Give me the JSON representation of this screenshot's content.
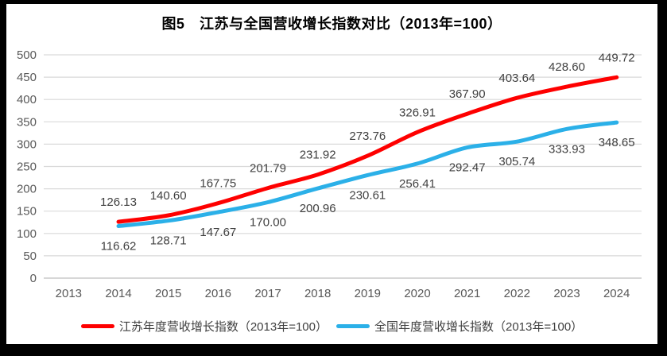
{
  "chart_data": {
    "type": "line",
    "title": "图5　江苏与全国营收增长指数对比（2013年=100）",
    "categories": [
      "2013",
      "2014",
      "2015",
      "2016",
      "2017",
      "2018",
      "2019",
      "2020",
      "2021",
      "2022",
      "2023",
      "2024"
    ],
    "xlabel": "",
    "ylabel": "",
    "ylim": [
      0,
      500
    ],
    "ytick_step": 50,
    "grid": true,
    "legend_position": "bottom",
    "series": [
      {
        "name": "江苏年度营收增长指数（2013年=100）",
        "color": "#fe0000",
        "label_position": "above",
        "x": [
          "2014",
          "2015",
          "2016",
          "2017",
          "2018",
          "2019",
          "2020",
          "2021",
          "2022",
          "2023",
          "2024"
        ],
        "values": [
          126.13,
          140.6,
          167.75,
          201.79,
          231.92,
          273.76,
          326.91,
          367.9,
          403.64,
          428.6,
          449.72
        ]
      },
      {
        "name": "全国年度营收增长指数（2013年=100）",
        "color": "#2bb0e8",
        "label_position": "below",
        "x": [
          "2014",
          "2015",
          "2016",
          "2017",
          "2018",
          "2019",
          "2020",
          "2021",
          "2022",
          "2023",
          "2024"
        ],
        "values": [
          116.62,
          128.71,
          147.67,
          170.0,
          200.96,
          230.61,
          256.41,
          292.47,
          305.74,
          333.93,
          348.65
        ]
      }
    ],
    "colors": {
      "background": "#ffffff",
      "frame": "#000000",
      "gridline": "#d9d9d9",
      "axis_line": "#bfbfbf",
      "tick_label": "#595959",
      "data_label": "#404040",
      "legend_label": "#404040"
    }
  }
}
